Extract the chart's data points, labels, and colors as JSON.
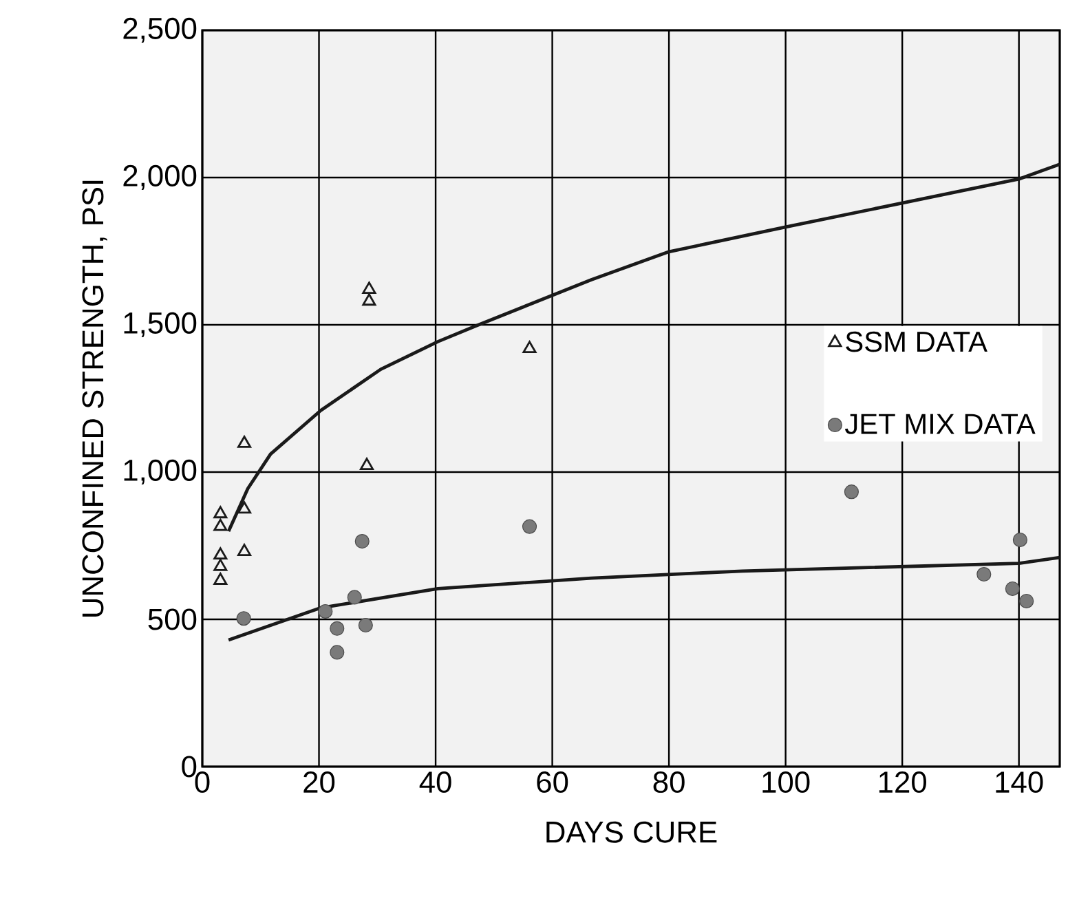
{
  "chart_data": {
    "type": "scatter",
    "xlabel": "DAYS CURE",
    "ylabel": "UNCONFINED STRENGTH, PSI",
    "xlim": [
      0,
      147
    ],
    "ylim": [
      0,
      2500
    ],
    "xticks": [
      0,
      20,
      40,
      60,
      80,
      100,
      120,
      140
    ],
    "yticks": [
      0,
      500,
      {
        "value": 1000,
        "label": "1,000"
      },
      {
        "value": 1500,
        "label": "1,500"
      },
      {
        "value": 2000,
        "label": "2,000"
      },
      {
        "value": 2500,
        "label": "2,500"
      }
    ],
    "grid": true,
    "legend": "right",
    "series": [
      {
        "name": "SSM DATA",
        "marker": "triangle",
        "color": "#1a1a1a",
        "x": [
          28.6,
          28.6,
          56.1,
          7.2,
          28.2,
          3.1,
          3.1,
          7.2,
          7.2,
          3.1,
          3.1,
          3.1
        ],
        "values": [
          1620,
          1580,
          1419,
          1097,
          1022,
          858,
          815,
          874,
          730,
          718,
          679,
          632
        ]
      },
      {
        "name": "JET MIX DATA",
        "marker": "circle",
        "color": "#7a7a7a",
        "x": [
          7.1,
          21.1,
          26.1,
          23.1,
          28.0,
          23.1,
          27.4,
          56.1,
          111.3,
          134.0,
          140.2,
          138.9,
          141.3
        ],
        "values": [
          503,
          527,
          575,
          469,
          480,
          388,
          765,
          815,
          933,
          653,
          770,
          604,
          562
        ]
      },
      {
        "type": "line",
        "color": "#1a1a1a",
        "x": [
          4.5,
          7.8,
          11.7,
          20.3,
          30.6,
          40.4,
          47.0,
          66.7,
          80,
          100,
          140,
          147
        ],
        "values": [
          799,
          944,
          1061,
          1209,
          1349,
          1443,
          1497,
          1653,
          1748,
          1832,
          1995,
          2045
        ]
      },
      {
        "type": "line",
        "color": "#1a1a1a",
        "x": [
          4.5,
          20.3,
          40.4,
          66.7,
          92.6,
          140,
          147
        ],
        "values": [
          430,
          539,
          604,
          640,
          664,
          690,
          710
        ]
      }
    ]
  }
}
